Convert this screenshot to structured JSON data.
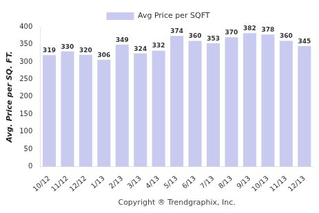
{
  "chart_data": {
    "type": "bar",
    "categories": [
      "10/12",
      "11/12",
      "12/12",
      "1/13",
      "2/13",
      "3/13",
      "4/13",
      "5/13",
      "6/13",
      "7/13",
      "8/13",
      "9/13",
      "10/13",
      "11/13",
      "12/13"
    ],
    "series": [
      {
        "name": "Avg Price per SQFT",
        "color": "#c8caf0",
        "values": [
          319,
          330,
          320,
          306,
          349,
          324,
          332,
          374,
          360,
          353,
          370,
          382,
          378,
          360,
          345
        ]
      }
    ],
    "x_label": "Copyright ® Trendgraphix, Inc.",
    "y_label": "Avg. Price per SQ. FT.",
    "ylim": [
      0,
      400
    ],
    "yticks": [
      0,
      50,
      100,
      150,
      200,
      250,
      300,
      350,
      400
    ],
    "grid": false,
    "legend": "top",
    "data_labels": true
  }
}
